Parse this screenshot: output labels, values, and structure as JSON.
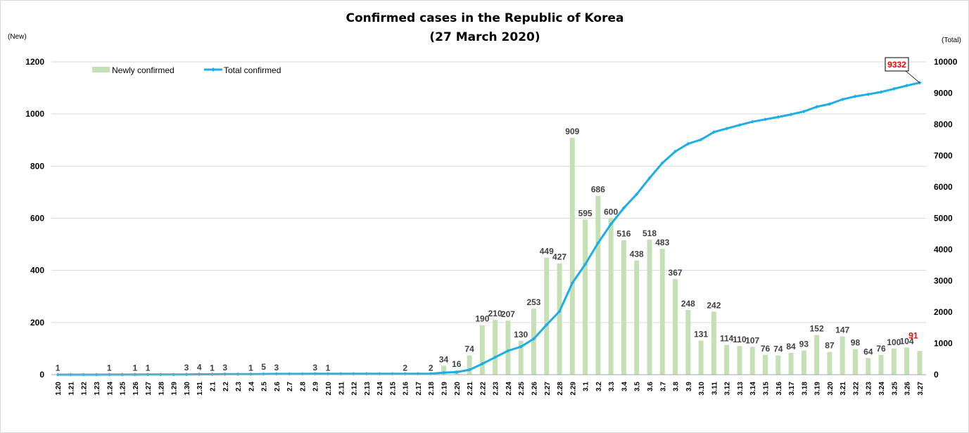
{
  "chart_data": {
    "type": "bar",
    "title": "Confirmed cases in the Republic of Korea",
    "subtitle": "(27 March 2020)",
    "ylabel_left": "(New)",
    "ylabel_right": "(Total)",
    "ylim_left": [
      0,
      1200
    ],
    "ylim_right": [
      0,
      10000
    ],
    "yticks_left": [
      "0",
      "200",
      "400",
      "600",
      "800",
      "1000",
      "1200"
    ],
    "yticks_right": [
      "0",
      "1000",
      "2000",
      "3000",
      "4000",
      "5000",
      "6000",
      "7000",
      "8000",
      "9000",
      "10000"
    ],
    "grid": true,
    "legend_position": "top-left",
    "highlight_color": "#ff0000",
    "categories": [
      "1.20",
      "1.21",
      "1.22",
      "1.23",
      "1.24",
      "1.25",
      "1.26",
      "1.27",
      "1.28",
      "1.29",
      "1.30",
      "1.31",
      "2.1",
      "2.2",
      "2.3",
      "2.4",
      "2.5",
      "2.6",
      "2.7",
      "2.8",
      "2.9",
      "2.10",
      "2.11",
      "2.12",
      "2.13",
      "2.14",
      "2.15",
      "2.16",
      "2.17",
      "2.18",
      "2.19",
      "2.20",
      "2.21",
      "2.22",
      "2.23",
      "2.24",
      "2.25",
      "2.26",
      "2.27",
      "2.28",
      "2.29",
      "3.1",
      "3.2",
      "3.3",
      "3.4",
      "3.5",
      "3.6",
      "3.7",
      "3.8",
      "3.9",
      "3.10",
      "3.11",
      "3.12",
      "3.13",
      "3.14",
      "3.15",
      "3.16",
      "3.17",
      "3.18",
      "3.19",
      "3.20",
      "3.21",
      "3.22",
      "3.23",
      "3.24",
      "3.25",
      "3.26",
      "3.27"
    ],
    "series": [
      {
        "name": "Newly confirmed",
        "kind": "bar",
        "axis": "left",
        "color": "#c5e0b4",
        "values": [
          1,
          0,
          0,
          0,
          1,
          0,
          1,
          1,
          0,
          0,
          3,
          4,
          1,
          3,
          0,
          1,
          5,
          3,
          0,
          0,
          3,
          1,
          0,
          0,
          0,
          0,
          0,
          2,
          0,
          2,
          34,
          16,
          74,
          190,
          210,
          207,
          130,
          253,
          449,
          427,
          909,
          595,
          686,
          600,
          516,
          438,
          518,
          483,
          367,
          248,
          131,
          242,
          114,
          110,
          107,
          76,
          74,
          84,
          93,
          152,
          87,
          147,
          98,
          64,
          76,
          100,
          104,
          91
        ],
        "labels": [
          "1",
          "",
          "",
          "",
          "1",
          "",
          "1",
          "1",
          "",
          "",
          "3",
          "4",
          "1",
          "3",
          "",
          "1",
          "5",
          "3",
          "",
          "",
          "3",
          "1",
          "",
          "",
          "",
          "",
          "",
          "2",
          "",
          "2",
          "34",
          "16",
          "74",
          "190",
          "210",
          "207",
          "130",
          "253",
          "449",
          "427",
          "909",
          "595",
          "686",
          "600",
          "516",
          "438",
          "518",
          "483",
          "367",
          "248",
          "131",
          "242",
          "114",
          "110",
          "107",
          "76",
          "74",
          "84",
          "93",
          "152",
          "87",
          "147",
          "98",
          "64",
          "76",
          "100",
          "104",
          "91"
        ]
      },
      {
        "name": "Total confirmed",
        "kind": "line",
        "axis": "right",
        "color": "#1eaee6",
        "values": [
          1,
          1,
          1,
          1,
          2,
          2,
          3,
          4,
          4,
          4,
          7,
          11,
          12,
          15,
          15,
          16,
          21,
          24,
          24,
          24,
          27,
          28,
          28,
          28,
          28,
          28,
          28,
          30,
          30,
          32,
          66,
          82,
          156,
          346,
          556,
          763,
          893,
          1146,
          1595,
          2022,
          2931,
          3526,
          4212,
          4812,
          5328,
          5766,
          6284,
          6767,
          7134,
          7382,
          7513,
          7755,
          7869,
          7979,
          8086,
          8162,
          8236,
          8320,
          8413,
          8565,
          8652,
          8799,
          8897,
          8961,
          9037,
          9137,
          9241,
          9332
        ],
        "end_label": "9332"
      }
    ]
  }
}
